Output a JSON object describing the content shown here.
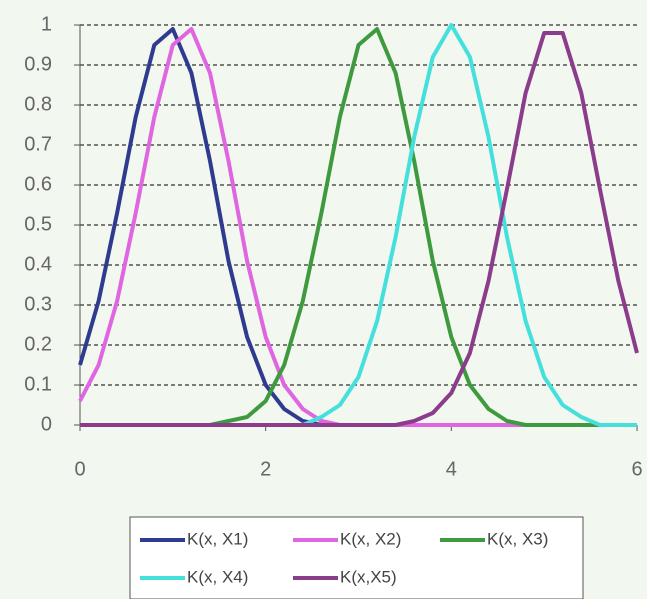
{
  "chart_data": {
    "type": "line",
    "x": [
      0,
      0.2,
      0.4,
      0.6,
      0.8,
      1,
      1.2,
      1.4,
      1.6,
      1.8,
      2,
      2.2,
      2.4,
      2.6,
      2.8,
      3,
      3.2,
      3.4,
      3.6,
      3.8,
      4,
      4.2,
      4.4,
      4.6,
      4.8,
      5,
      5.2,
      5.4,
      5.6,
      5.8,
      6
    ],
    "series": [
      {
        "name": "K(x, X1)",
        "color": "#2f3b8f",
        "values": [
          0.15,
          0.31,
          0.53,
          0.77,
          0.95,
          0.99,
          0.88,
          0.66,
          0.41,
          0.22,
          0.1,
          0.04,
          0.01,
          0,
          0,
          0,
          0,
          0,
          0,
          0,
          0,
          0,
          0,
          0,
          0,
          0,
          0,
          0,
          0,
          0,
          0
        ]
      },
      {
        "name": "K(x, X2)",
        "color": "#e065e0",
        "values": [
          0.06,
          0.15,
          0.31,
          0.53,
          0.77,
          0.95,
          0.99,
          0.88,
          0.66,
          0.41,
          0.22,
          0.1,
          0.04,
          0.01,
          0,
          0,
          0,
          0,
          0,
          0,
          0,
          0,
          0,
          0,
          0,
          0,
          0,
          0,
          0,
          0,
          0
        ]
      },
      {
        "name": "K(x, X3)",
        "color": "#3f9a3f",
        "values": [
          0,
          0,
          0,
          0,
          0,
          0,
          0,
          0,
          0.01,
          0.02,
          0.06,
          0.15,
          0.31,
          0.53,
          0.77,
          0.95,
          0.99,
          0.88,
          0.66,
          0.41,
          0.22,
          0.1,
          0.04,
          0.01,
          0,
          0,
          0,
          0,
          0,
          0,
          0
        ]
      },
      {
        "name": "K(x, X4)",
        "color": "#45e0dc",
        "values": [
          0,
          0,
          0,
          0,
          0,
          0,
          0,
          0,
          0,
          0,
          0,
          0,
          0,
          0.02,
          0.05,
          0.12,
          0.26,
          0.47,
          0.72,
          0.92,
          1,
          0.92,
          0.72,
          0.47,
          0.26,
          0.12,
          0.05,
          0.02,
          0,
          0,
          0
        ]
      },
      {
        "name": "K(x,X5)",
        "color": "#8b3c8b",
        "values": [
          0,
          0,
          0,
          0,
          0,
          0,
          0,
          0,
          0,
          0,
          0,
          0,
          0,
          0,
          0,
          0,
          0,
          0,
          0.01,
          0.03,
          0.08,
          0.18,
          0.36,
          0.59,
          0.83,
          0.98,
          0.98,
          0.83,
          0.59,
          0.36,
          0.18
        ]
      }
    ],
    "xlim": [
      0,
      6
    ],
    "xticks": [
      0,
      2,
      4,
      6
    ],
    "ylim": [
      0,
      1
    ],
    "yticks": [
      0,
      0.1,
      0.2,
      0.3,
      0.4,
      0.5,
      0.6,
      0.7,
      0.8,
      0.9,
      1
    ],
    "grid": true,
    "legend": "bottom"
  }
}
